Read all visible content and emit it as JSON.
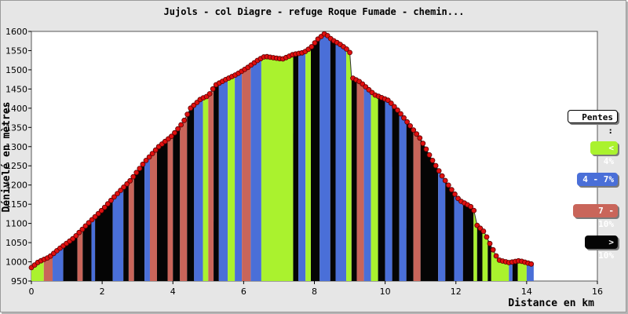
{
  "chart_data": {
    "type": "area",
    "title": "Jujols - col Diagre - refuge Roque Fumade - chemin...",
    "xlabel": "Distance en km",
    "ylabel": "Dénivelé en mètres",
    "xlim": [
      0,
      16
    ],
    "ylim": [
      950,
      1600
    ],
    "x_ticks": [
      0,
      2,
      4,
      6,
      8,
      10,
      12,
      14,
      16
    ],
    "y_ticks": [
      950,
      1000,
      1050,
      1100,
      1150,
      1200,
      1250,
      1300,
      1350,
      1400,
      1450,
      1500,
      1550,
      1600
    ],
    "grid": "none",
    "legend_placement": "right",
    "legend": {
      "title": "Pentes :",
      "items": [
        {
          "label": "< 4%",
          "color": "#aaf22e",
          "text_color": "#ffffff"
        },
        {
          "label": "4 - 7%",
          "color": "#4a6fd8",
          "text_color": "#ffffff"
        },
        {
          "label": "7 - 10%",
          "color": "#c9655a",
          "text_color": "#ffffff"
        },
        {
          "label": "> 10%",
          "color": "#050505",
          "text_color": "#ffffff"
        }
      ]
    },
    "profile": [
      [
        0,
        985
      ],
      [
        0.2,
        1000
      ],
      [
        0.5,
        1012
      ],
      [
        0.8,
        1035
      ],
      [
        1.2,
        1062
      ],
      [
        1.6,
        1100
      ],
      [
        2,
        1135
      ],
      [
        2.4,
        1175
      ],
      [
        2.8,
        1212
      ],
      [
        3.2,
        1260
      ],
      [
        3.6,
        1300
      ],
      [
        4,
        1330
      ],
      [
        4.3,
        1365
      ],
      [
        4.5,
        1400
      ],
      [
        4.8,
        1425
      ],
      [
        5,
        1432
      ],
      [
        5.2,
        1460
      ],
      [
        5.5,
        1475
      ],
      [
        5.8,
        1488
      ],
      [
        6.1,
        1505
      ],
      [
        6.4,
        1525
      ],
      [
        6.6,
        1535
      ],
      [
        6.8,
        1532
      ],
      [
        7.1,
        1528
      ],
      [
        7.4,
        1540
      ],
      [
        7.7,
        1545
      ],
      [
        7.9,
        1558
      ],
      [
        8.1,
        1580
      ],
      [
        8.3,
        1595
      ],
      [
        8.5,
        1578
      ],
      [
        8.7,
        1568
      ],
      [
        8.9,
        1555
      ],
      [
        9.0,
        1545
      ],
      [
        9.05,
        1480
      ],
      [
        9.3,
        1468
      ],
      [
        9.7,
        1435
      ],
      [
        10.1,
        1420
      ],
      [
        10.4,
        1390
      ],
      [
        10.7,
        1355
      ],
      [
        11.0,
        1320
      ],
      [
        11.3,
        1270
      ],
      [
        11.6,
        1225
      ],
      [
        11.9,
        1185
      ],
      [
        12.1,
        1160
      ],
      [
        12.4,
        1145
      ],
      [
        12.5,
        1138
      ],
      [
        12.6,
        1095
      ],
      [
        12.8,
        1078
      ],
      [
        13.0,
        1040
      ],
      [
        13.2,
        1005
      ],
      [
        13.5,
        998
      ],
      [
        13.8,
        1003
      ],
      [
        14.1,
        995
      ],
      [
        14.2,
        993
      ]
    ],
    "slope_bands": [
      [
        0.0,
        0.35,
        "green"
      ],
      [
        0.35,
        0.6,
        "red"
      ],
      [
        0.6,
        0.9,
        "blue"
      ],
      [
        0.9,
        1.3,
        "black"
      ],
      [
        1.3,
        1.45,
        "red"
      ],
      [
        1.45,
        1.7,
        "black"
      ],
      [
        1.7,
        1.8,
        "blue"
      ],
      [
        1.8,
        2.3,
        "black"
      ],
      [
        2.3,
        2.6,
        "blue"
      ],
      [
        2.6,
        2.75,
        "black"
      ],
      [
        2.75,
        2.9,
        "red"
      ],
      [
        2.9,
        3.2,
        "black"
      ],
      [
        3.2,
        3.35,
        "blue"
      ],
      [
        3.35,
        3.55,
        "red"
      ],
      [
        3.55,
        3.85,
        "black"
      ],
      [
        3.85,
        4.0,
        "red"
      ],
      [
        4.0,
        4.2,
        "black"
      ],
      [
        4.2,
        4.4,
        "red"
      ],
      [
        4.4,
        4.6,
        "black"
      ],
      [
        4.6,
        4.85,
        "blue"
      ],
      [
        4.85,
        5.0,
        "green"
      ],
      [
        5.0,
        5.15,
        "red"
      ],
      [
        5.15,
        5.3,
        "black"
      ],
      [
        5.3,
        5.55,
        "blue"
      ],
      [
        5.55,
        5.75,
        "green"
      ],
      [
        5.75,
        5.95,
        "blue"
      ],
      [
        5.95,
        6.2,
        "red"
      ],
      [
        6.2,
        6.5,
        "blue"
      ],
      [
        6.5,
        7.4,
        "green"
      ],
      [
        7.4,
        7.55,
        "black"
      ],
      [
        7.55,
        7.75,
        "blue"
      ],
      [
        7.75,
        7.9,
        "green"
      ],
      [
        7.9,
        8.15,
        "black"
      ],
      [
        8.15,
        8.45,
        "blue"
      ],
      [
        8.45,
        8.6,
        "black"
      ],
      [
        8.6,
        8.9,
        "blue"
      ],
      [
        8.9,
        9.05,
        "green"
      ],
      [
        9.05,
        9.2,
        "black"
      ],
      [
        9.2,
        9.4,
        "red"
      ],
      [
        9.4,
        9.6,
        "blue"
      ],
      [
        9.6,
        9.8,
        "green"
      ],
      [
        9.8,
        10.0,
        "black"
      ],
      [
        10.0,
        10.2,
        "blue"
      ],
      [
        10.2,
        10.4,
        "black"
      ],
      [
        10.4,
        10.6,
        "blue"
      ],
      [
        10.6,
        10.8,
        "black"
      ],
      [
        10.8,
        11.0,
        "red"
      ],
      [
        11.0,
        11.5,
        "black"
      ],
      [
        11.5,
        11.7,
        "blue"
      ],
      [
        11.7,
        11.95,
        "black"
      ],
      [
        11.95,
        12.2,
        "blue"
      ],
      [
        12.2,
        12.5,
        "black"
      ],
      [
        12.5,
        12.6,
        "green"
      ],
      [
        12.6,
        12.75,
        "black"
      ],
      [
        12.75,
        12.9,
        "green"
      ],
      [
        12.9,
        13.0,
        "black"
      ],
      [
        13.0,
        13.5,
        "green"
      ],
      [
        13.5,
        13.6,
        "blue"
      ],
      [
        13.6,
        13.75,
        "black"
      ],
      [
        13.75,
        14.0,
        "green"
      ],
      [
        14.0,
        14.2,
        "blue"
      ]
    ]
  }
}
